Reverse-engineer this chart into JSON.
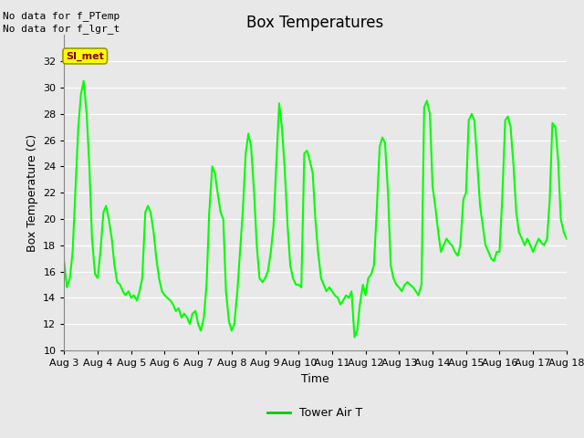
{
  "title": "Box Temperatures",
  "xlabel": "Time",
  "ylabel": "Box Temperature (C)",
  "ylim": [
    10,
    34
  ],
  "yticks": [
    10,
    12,
    14,
    16,
    18,
    20,
    22,
    24,
    26,
    28,
    30,
    32
  ],
  "line_color": "#00FF00",
  "line_width": 1.5,
  "bg_color": "#E8E8E8",
  "text_no_data1": "No data for f_PTemp",
  "text_no_data2": "No data for f_lgr_t",
  "legend_label": "Tower Air T",
  "legend_line_color": "#00CC00",
  "si_met_label": "SI_met",
  "si_met_bg": "#FFFF00",
  "si_met_text_color": "#880000",
  "x_start_day": 3,
  "x_end_day": 18,
  "x_tick_days": [
    3,
    4,
    5,
    6,
    7,
    8,
    9,
    10,
    11,
    12,
    13,
    14,
    15,
    16,
    17,
    18
  ],
  "x_tick_labels": [
    "Aug 3",
    "Aug 4",
    "Aug 5",
    "Aug 6",
    "Aug 7",
    "Aug 8",
    "Aug 9",
    "Aug 10",
    "Aug 11",
    "Aug 12",
    "Aug 13",
    "Aug 14",
    "Aug 15",
    "Aug 16",
    "Aug 17",
    "Aug 18"
  ],
  "temp_data_x": [
    3.0,
    3.08,
    3.17,
    3.25,
    3.33,
    3.42,
    3.5,
    3.58,
    3.67,
    3.75,
    3.83,
    3.92,
    4.0,
    4.08,
    4.17,
    4.25,
    4.33,
    4.42,
    4.5,
    4.58,
    4.67,
    4.75,
    4.83,
    4.92,
    5.0,
    5.08,
    5.17,
    5.25,
    5.33,
    5.42,
    5.5,
    5.58,
    5.67,
    5.75,
    5.83,
    5.92,
    6.0,
    6.08,
    6.17,
    6.25,
    6.33,
    6.42,
    6.5,
    6.58,
    6.67,
    6.75,
    6.83,
    6.92,
    7.0,
    7.08,
    7.17,
    7.25,
    7.33,
    7.42,
    7.5,
    7.58,
    7.67,
    7.75,
    7.83,
    7.92,
    8.0,
    8.08,
    8.17,
    8.25,
    8.33,
    8.42,
    8.5,
    8.58,
    8.67,
    8.75,
    8.83,
    8.92,
    9.0,
    9.08,
    9.17,
    9.25,
    9.33,
    9.42,
    9.5,
    9.58,
    9.67,
    9.75,
    9.83,
    9.92,
    10.0,
    10.08,
    10.17,
    10.25,
    10.33,
    10.42,
    10.5,
    10.58,
    10.67,
    10.75,
    10.83,
    10.92,
    11.0,
    11.08,
    11.17,
    11.25,
    11.33,
    11.42,
    11.5,
    11.58,
    11.67,
    11.75,
    11.83,
    11.92,
    12.0,
    12.08,
    12.17,
    12.25,
    12.33,
    12.42,
    12.5,
    12.58,
    12.67,
    12.75,
    12.83,
    12.92,
    13.0,
    13.08,
    13.17,
    13.25,
    13.33,
    13.42,
    13.5,
    13.58,
    13.67,
    13.75,
    13.83,
    13.92,
    14.0,
    14.08,
    14.17,
    14.25,
    14.33,
    14.42,
    14.5,
    14.58,
    14.67,
    14.75,
    14.83,
    14.92,
    15.0,
    15.08,
    15.17,
    15.25,
    15.33,
    15.42,
    15.5,
    15.58,
    15.67,
    15.75,
    15.83,
    15.92,
    16.0,
    16.08,
    16.17,
    16.25,
    16.33,
    16.42,
    16.5,
    16.58,
    16.67,
    16.75,
    16.83,
    16.92,
    17.0,
    17.08,
    17.17,
    17.25,
    17.33,
    17.42,
    17.5,
    17.58,
    17.67,
    17.75,
    17.83,
    17.92,
    18.0
  ],
  "temp_data_y": [
    16.7,
    14.8,
    15.5,
    17.5,
    22.0,
    27.0,
    29.5,
    30.5,
    28.0,
    24.0,
    18.5,
    15.8,
    15.5,
    17.5,
    20.5,
    21.0,
    20.0,
    18.5,
    16.5,
    15.2,
    15.0,
    14.5,
    14.2,
    14.5,
    14.0,
    14.2,
    13.8,
    14.5,
    15.5,
    20.5,
    21.0,
    20.5,
    19.0,
    17.0,
    15.5,
    14.5,
    14.2,
    14.0,
    13.8,
    13.5,
    13.0,
    13.2,
    12.5,
    12.8,
    12.5,
    12.0,
    12.8,
    13.0,
    12.0,
    11.5,
    12.5,
    15.0,
    20.5,
    24.0,
    23.5,
    22.0,
    20.5,
    20.0,
    14.5,
    12.2,
    11.5,
    12.0,
    14.5,
    17.5,
    20.5,
    25.0,
    26.5,
    25.5,
    22.0,
    18.0,
    15.5,
    15.2,
    15.5,
    16.0,
    17.5,
    19.5,
    24.0,
    28.8,
    27.0,
    24.0,
    19.5,
    16.5,
    15.5,
    15.0,
    15.0,
    14.8,
    25.0,
    25.2,
    24.5,
    23.5,
    20.0,
    17.5,
    15.5,
    15.0,
    14.5,
    14.8,
    14.5,
    14.2,
    14.0,
    13.5,
    13.8,
    14.2,
    14.0,
    14.5,
    11.0,
    11.5,
    13.5,
    15.0,
    14.2,
    15.5,
    15.8,
    16.5,
    20.5,
    25.5,
    26.2,
    25.8,
    22.0,
    16.5,
    15.5,
    15.0,
    14.8,
    14.5,
    15.0,
    15.2,
    15.0,
    14.8,
    14.5,
    14.2,
    15.0,
    28.5,
    29.0,
    28.0,
    22.5,
    21.0,
    19.0,
    17.5,
    18.0,
    18.5,
    18.2,
    18.0,
    17.5,
    17.2,
    18.0,
    21.5,
    22.0,
    27.5,
    28.0,
    27.5,
    24.5,
    21.0,
    19.5,
    18.0,
    17.5,
    17.0,
    16.8,
    17.5,
    17.5,
    21.5,
    27.5,
    27.8,
    27.0,
    24.0,
    20.5,
    19.0,
    18.5,
    18.0,
    18.5,
    18.0,
    17.5,
    18.0,
    18.5,
    18.2,
    18.0,
    18.5,
    21.5,
    27.3,
    27.0,
    24.5,
    20.0,
    19.0,
    18.5
  ]
}
